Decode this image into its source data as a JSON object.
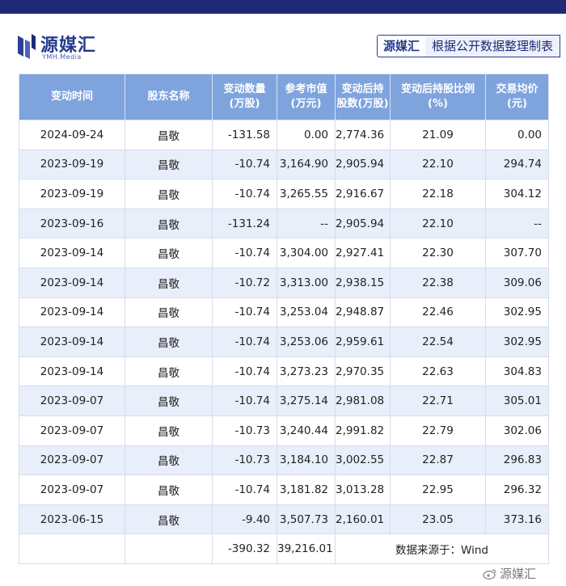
{
  "brand": {
    "name": "源媒汇",
    "sub": "YMH.Media"
  },
  "note": {
    "brand": "源媒汇",
    "text": "根据公开数据整理制表"
  },
  "table": {
    "headers": [
      "变动时间",
      "股东名称",
      "变动数量\n(万股)",
      "参考市值\n(万元)",
      "变动后持\n股数(万股)",
      "变动后持股比例\n(%)",
      "交易均价\n(元)"
    ],
    "rows": [
      [
        "2024-09-24",
        "昌敬",
        "-131.58",
        "0.00",
        "2,774.36",
        "21.09",
        "0.00"
      ],
      [
        "2023-09-19",
        "昌敬",
        "-10.74",
        "3,164.90",
        "2,905.94",
        "22.10",
        "294.74"
      ],
      [
        "2023-09-19",
        "昌敬",
        "-10.74",
        "3,265.55",
        "2,916.67",
        "22.18",
        "304.12"
      ],
      [
        "2023-09-16",
        "昌敬",
        "-131.24",
        "--",
        "2,905.94",
        "22.10",
        "--"
      ],
      [
        "2023-09-14",
        "昌敬",
        "-10.74",
        "3,304.00",
        "2,927.41",
        "22.30",
        "307.70"
      ],
      [
        "2023-09-14",
        "昌敬",
        "-10.72",
        "3,313.00",
        "2,938.15",
        "22.38",
        "309.06"
      ],
      [
        "2023-09-14",
        "昌敬",
        "-10.74",
        "3,253.04",
        "2,948.87",
        "22.46",
        "302.95"
      ],
      [
        "2023-09-14",
        "昌敬",
        "-10.74",
        "3,253.06",
        "2,959.61",
        "22.54",
        "302.95"
      ],
      [
        "2023-09-14",
        "昌敬",
        "-10.74",
        "3,273.23",
        "2,970.35",
        "22.63",
        "304.83"
      ],
      [
        "2023-09-07",
        "昌敬",
        "-10.74",
        "3,275.14",
        "2,981.08",
        "22.71",
        "305.01"
      ],
      [
        "2023-09-07",
        "昌敬",
        "-10.73",
        "3,240.44",
        "2,991.82",
        "22.79",
        "302.06"
      ],
      [
        "2023-09-07",
        "昌敬",
        "-10.73",
        "3,184.10",
        "3,002.55",
        "22.87",
        "296.83"
      ],
      [
        "2023-09-07",
        "昌敬",
        "-10.74",
        "3,181.82",
        "3,013.28",
        "22.95",
        "296.32"
      ],
      [
        "2023-06-15",
        "昌敬",
        "-9.40",
        "3,507.73",
        "2,160.01",
        "23.05",
        "373.16"
      ]
    ],
    "footer": {
      "total_change": "-390.32",
      "total_value": "39,216.01",
      "source": "数据来源于：Wind"
    }
  },
  "watermark": "源媒汇",
  "colors": {
    "top_bar": "#1e2a78",
    "header_bg": "#7fa4dd",
    "stripe_bg": "#e8eefa",
    "brand": "#243a8e"
  }
}
